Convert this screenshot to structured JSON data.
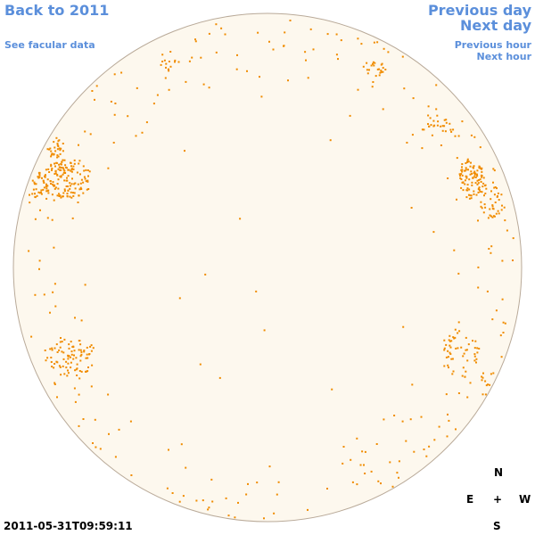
{
  "nav": {
    "back_label": "Back to 2011",
    "facular_label": "See facular data",
    "prev_day_label": "Previous day",
    "next_day_label": "Next day",
    "prev_hour_label": "Previous hour",
    "next_hour_label": "Next hour"
  },
  "compass": {
    "north": "N",
    "east": "E",
    "center": "+",
    "west": "W",
    "south": "S"
  },
  "timestamp": "2011-05-31T09:59:11",
  "colors": {
    "link": "#5b8fdb",
    "disk_fill": "#fdf8ee",
    "disk_outline": "#b9aa99",
    "facula": "#f08c00"
  }
}
